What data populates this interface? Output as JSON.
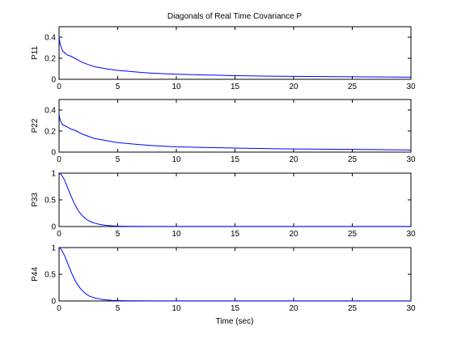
{
  "chart_data": [
    {
      "type": "line",
      "title": "Diagonals of Real Time Covariance P",
      "xlabel": "",
      "ylabel": "P11",
      "xlim": [
        0,
        30
      ],
      "ylim": [
        0,
        0.5
      ],
      "xticks": [
        0,
        5,
        10,
        15,
        20,
        25,
        30
      ],
      "yticks": [
        0,
        0.2,
        0.4
      ],
      "ytick_labels": [
        "0",
        "0.2",
        "0.4"
      ],
      "grid": false,
      "series": [
        {
          "color": "#0000ff",
          "x": [
            0,
            0.1,
            0.2,
            0.3,
            0.5,
            0.7,
            1,
            1.5,
            2,
            2.5,
            3,
            4,
            5,
            6,
            7,
            8,
            10,
            12,
            15,
            18,
            20,
            25,
            30
          ],
          "y": [
            0.4,
            0.33,
            0.3,
            0.27,
            0.25,
            0.23,
            0.22,
            0.19,
            0.16,
            0.14,
            0.12,
            0.1,
            0.085,
            0.075,
            0.065,
            0.058,
            0.048,
            0.042,
            0.035,
            0.03,
            0.028,
            0.024,
            0.02
          ]
        }
      ]
    },
    {
      "type": "line",
      "title": "",
      "xlabel": "",
      "ylabel": "P22",
      "xlim": [
        0,
        30
      ],
      "ylim": [
        0,
        0.5
      ],
      "xticks": [
        0,
        5,
        10,
        15,
        20,
        25,
        30
      ],
      "yticks": [
        0,
        0.2,
        0.4
      ],
      "ytick_labels": [
        "0",
        "0.2",
        "0.4"
      ],
      "grid": false,
      "series": [
        {
          "color": "#0000ff",
          "x": [
            0,
            0.1,
            0.2,
            0.3,
            0.5,
            0.7,
            1,
            1.5,
            2,
            2.5,
            3,
            4,
            5,
            6,
            7,
            8,
            10,
            12,
            15,
            18,
            20,
            25,
            30
          ],
          "y": [
            0.36,
            0.3,
            0.28,
            0.26,
            0.25,
            0.24,
            0.22,
            0.2,
            0.17,
            0.15,
            0.13,
            0.11,
            0.09,
            0.08,
            0.07,
            0.062,
            0.05,
            0.045,
            0.038,
            0.033,
            0.03,
            0.026,
            0.02
          ]
        }
      ]
    },
    {
      "type": "line",
      "title": "",
      "xlabel": "",
      "ylabel": "P33",
      "xlim": [
        0,
        30
      ],
      "ylim": [
        0,
        1
      ],
      "xticks": [
        0,
        5,
        10,
        15,
        20,
        25,
        30
      ],
      "yticks": [
        0,
        0.5,
        1
      ],
      "ytick_labels": [
        "0",
        "0.5",
        "1"
      ],
      "grid": false,
      "series": [
        {
          "color": "#0000ff",
          "x": [
            0,
            0.2,
            0.4,
            0.6,
            0.8,
            1,
            1.2,
            1.4,
            1.6,
            1.8,
            2,
            2.3,
            2.6,
            3,
            3.5,
            4,
            4.5,
            5,
            6,
            8,
            10,
            15,
            20,
            25,
            30
          ],
          "y": [
            1.0,
            0.97,
            0.9,
            0.8,
            0.69,
            0.58,
            0.48,
            0.39,
            0.31,
            0.25,
            0.2,
            0.14,
            0.1,
            0.065,
            0.038,
            0.022,
            0.013,
            0.008,
            0.004,
            0.002,
            0.001,
            0.001,
            0.001,
            0.001,
            0.001
          ]
        }
      ]
    },
    {
      "type": "line",
      "title": "",
      "xlabel": "Time (sec)",
      "ylabel": "P44",
      "xlim": [
        0,
        30
      ],
      "ylim": [
        0,
        1
      ],
      "xticks": [
        0,
        5,
        10,
        15,
        20,
        25,
        30
      ],
      "yticks": [
        0,
        0.5,
        1
      ],
      "ytick_labels": [
        "0",
        "0.5",
        "1"
      ],
      "grid": false,
      "series": [
        {
          "color": "#0000ff",
          "x": [
            0,
            0.2,
            0.4,
            0.6,
            0.8,
            1,
            1.2,
            1.4,
            1.6,
            1.8,
            2,
            2.3,
            2.6,
            3,
            3.5,
            4,
            4.5,
            5,
            6,
            8,
            10,
            15,
            20,
            25,
            30
          ],
          "y": [
            1.0,
            0.96,
            0.88,
            0.78,
            0.67,
            0.56,
            0.46,
            0.37,
            0.3,
            0.24,
            0.19,
            0.13,
            0.09,
            0.06,
            0.035,
            0.02,
            0.012,
            0.007,
            0.004,
            0.002,
            0.001,
            0.001,
            0.001,
            0.001,
            0.001
          ]
        }
      ]
    }
  ]
}
